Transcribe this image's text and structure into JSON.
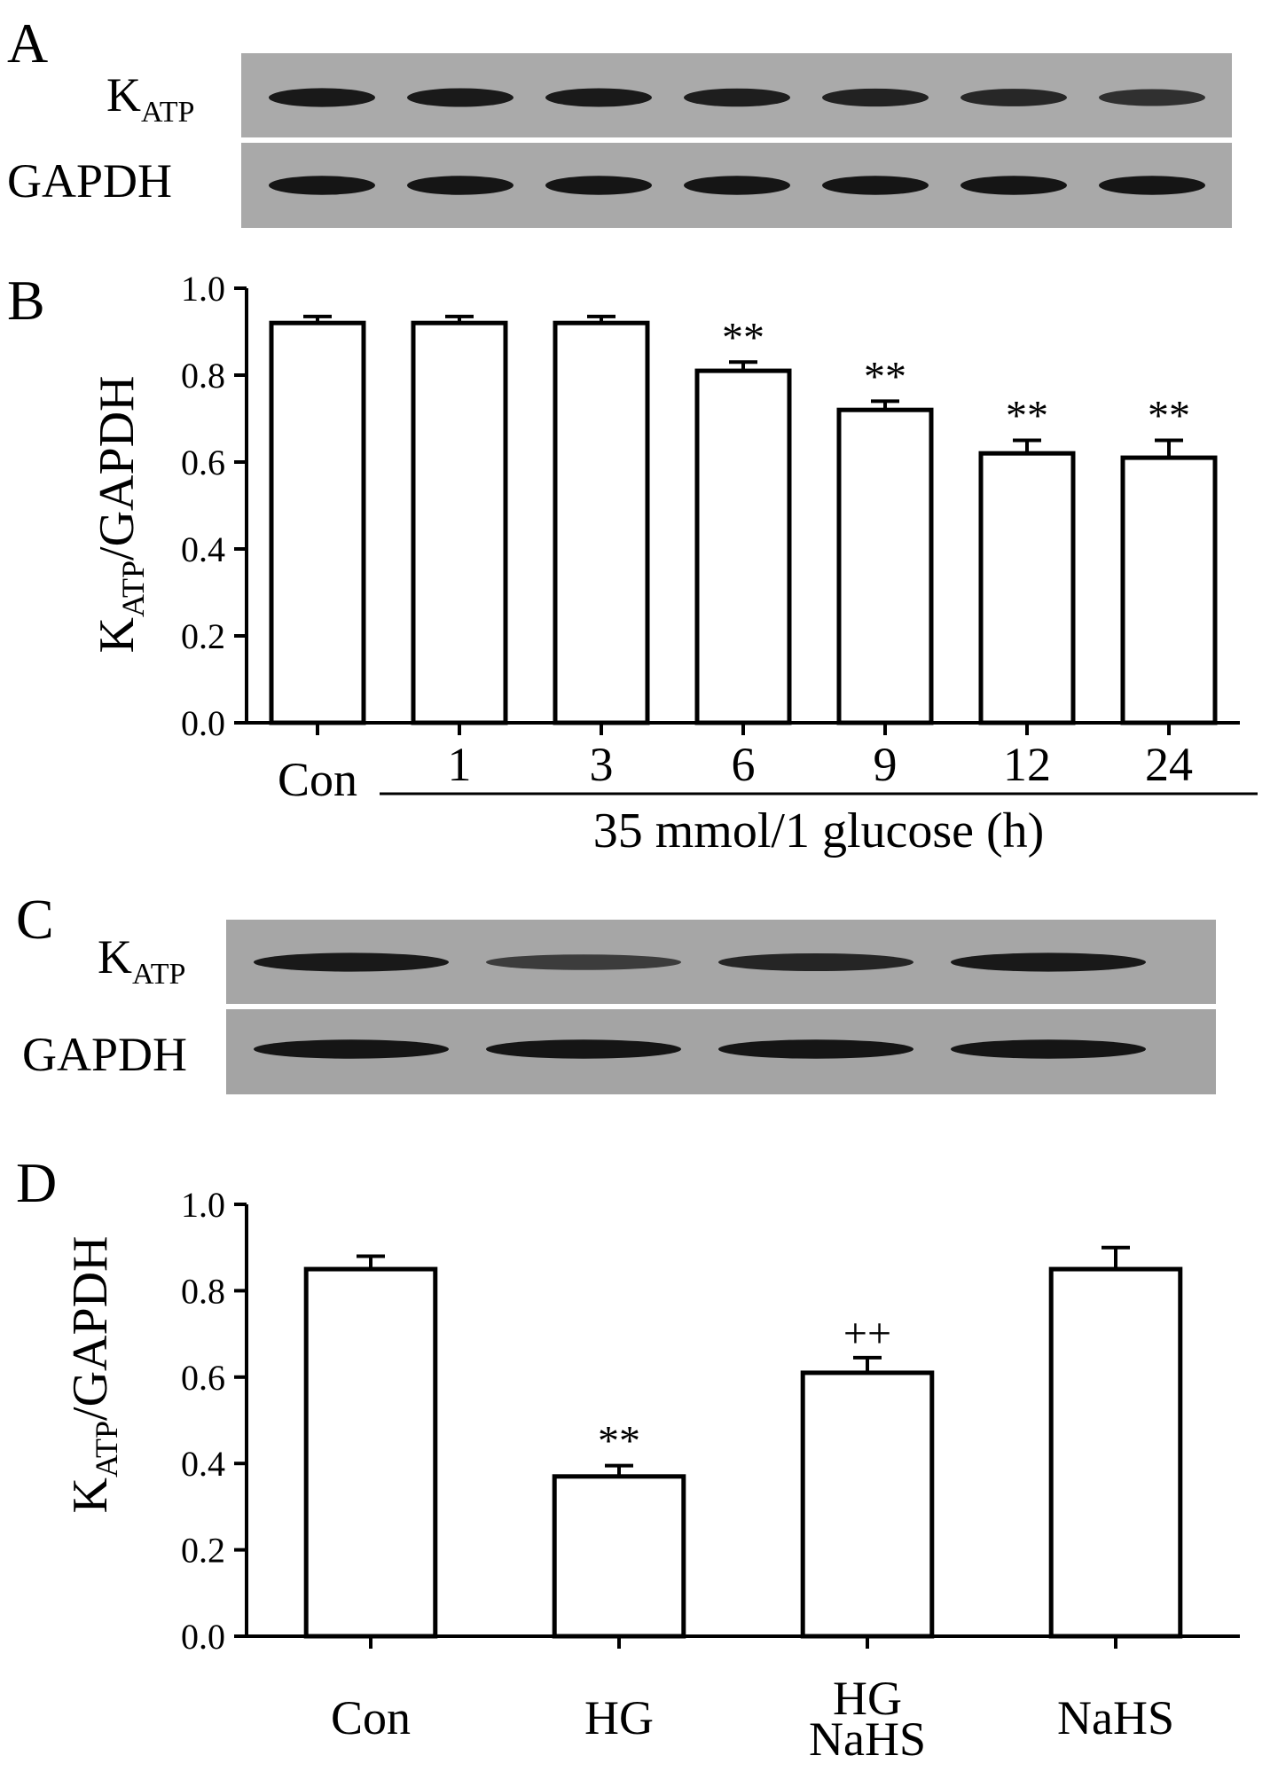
{
  "panels": {
    "A": {
      "label": "A",
      "rows": [
        {
          "protein_main": "K",
          "protein_sub": "ATP",
          "band_intensity": [
            0.92,
            0.91,
            0.9,
            0.86,
            0.83,
            0.78,
            0.7
          ]
        },
        {
          "protein_main": "GAPDH",
          "protein_sub": "",
          "band_intensity": [
            0.95,
            0.95,
            0.95,
            0.95,
            0.95,
            0.95,
            0.95
          ]
        }
      ]
    },
    "C": {
      "label": "C",
      "rows": [
        {
          "protein_main": "K",
          "protein_sub": "ATP",
          "band_intensity": [
            0.92,
            0.55,
            0.8,
            0.92
          ]
        },
        {
          "protein_main": "GAPDH",
          "protein_sub": "",
          "band_intensity": [
            0.95,
            0.95,
            0.95,
            0.95
          ]
        }
      ]
    }
  },
  "chart_data": [
    {
      "panel": "B",
      "type": "bar",
      "ylabel_main": "K",
      "ylabel_sub": "ATP",
      "ylabel_rest": "/GAPDH",
      "ylim": [
        0.0,
        1.0
      ],
      "yticks": [
        "0.0",
        "0.2",
        "0.4",
        "0.6",
        "0.8",
        "1.0"
      ],
      "categories": [
        "Con",
        "1",
        "3",
        "6",
        "9",
        "12",
        "24"
      ],
      "values": [
        0.92,
        0.92,
        0.92,
        0.81,
        0.72,
        0.62,
        0.61
      ],
      "errors": [
        0.015,
        0.015,
        0.015,
        0.02,
        0.02,
        0.03,
        0.04
      ],
      "annotations": [
        "",
        "",
        "",
        "**",
        "**",
        "**",
        "**"
      ],
      "group_label": "35 mmol/1 glucose (h)",
      "grid": false
    },
    {
      "panel": "D",
      "type": "bar",
      "ylabel_main": "K",
      "ylabel_sub": "ATP",
      "ylabel_rest": "/GAPDH",
      "ylim": [
        0.0,
        1.0
      ],
      "yticks": [
        "0.0",
        "0.2",
        "0.4",
        "0.6",
        "0.8",
        "1.0"
      ],
      "categories": [
        [
          "Con"
        ],
        [
          "HG"
        ],
        [
          "HG",
          "NaHS"
        ],
        [
          "NaHS"
        ]
      ],
      "values": [
        0.85,
        0.37,
        0.61,
        0.85
      ],
      "errors": [
        0.03,
        0.025,
        0.035,
        0.05
      ],
      "annotations": [
        "",
        "**",
        "++",
        ""
      ],
      "grid": false
    }
  ]
}
